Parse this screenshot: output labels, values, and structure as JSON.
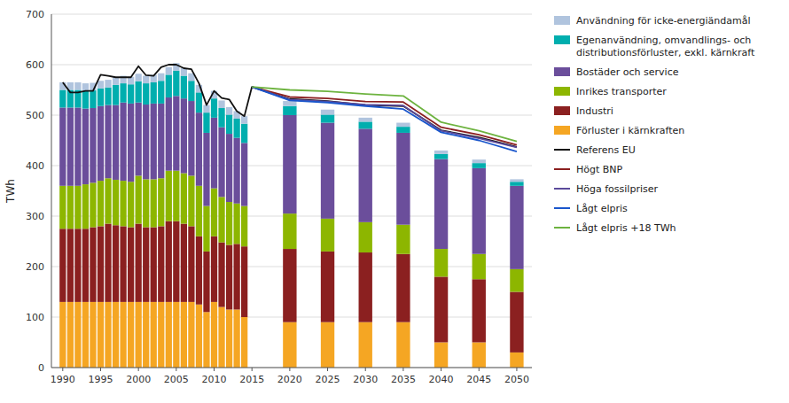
{
  "chart_data": {
    "type": "bar",
    "stacked": true,
    "grid": true,
    "legend": "right",
    "y_label": "TWh",
    "xlim": [
      1988.5,
      2052
    ],
    "xticks": [
      1990,
      1995,
      2000,
      2005,
      2010,
      2015,
      2020,
      2025,
      2030,
      2035,
      2040,
      2045,
      2050
    ],
    "ylim": [
      0,
      700
    ],
    "yticks": [
      0,
      100,
      200,
      300,
      400,
      500,
      600,
      700
    ],
    "series": [
      {
        "name": "Förluster i kärnkraften",
        "type": "bar",
        "color": "#F5A623",
        "x": [
          1990,
          1991,
          1992,
          1993,
          1994,
          1995,
          1996,
          1997,
          1998,
          1999,
          2000,
          2001,
          2002,
          2003,
          2004,
          2005,
          2006,
          2007,
          2008,
          2009,
          2010,
          2011,
          2012,
          2013,
          2014,
          2020,
          2025,
          2030,
          2035,
          2040,
          2045,
          2050
        ],
        "values": [
          130,
          130,
          130,
          130,
          130,
          130,
          130,
          130,
          130,
          130,
          130,
          130,
          130,
          130,
          130,
          130,
          130,
          130,
          125,
          110,
          130,
          120,
          115,
          115,
          100,
          90,
          90,
          90,
          90,
          50,
          50,
          30
        ]
      },
      {
        "name": "Industri",
        "type": "bar",
        "color": "#8B2020",
        "x": [
          1990,
          1991,
          1992,
          1993,
          1994,
          1995,
          1996,
          1997,
          1998,
          1999,
          2000,
          2001,
          2002,
          2003,
          2004,
          2005,
          2006,
          2007,
          2008,
          2009,
          2010,
          2011,
          2012,
          2013,
          2014,
          2020,
          2025,
          2030,
          2035,
          2040,
          2045,
          2050
        ],
        "values": [
          145,
          145,
          145,
          145,
          148,
          150,
          155,
          152,
          150,
          148,
          155,
          148,
          148,
          150,
          160,
          160,
          155,
          150,
          135,
          120,
          130,
          128,
          128,
          130,
          140,
          145,
          140,
          138,
          135,
          130,
          125,
          120
        ]
      },
      {
        "name": "Inrikes transporter",
        "type": "bar",
        "color": "#8DB600",
        "x": [
          1990,
          1991,
          1992,
          1993,
          1994,
          1995,
          1996,
          1997,
          1998,
          1999,
          2000,
          2001,
          2002,
          2003,
          2004,
          2005,
          2006,
          2007,
          2008,
          2009,
          2010,
          2011,
          2012,
          2013,
          2014,
          2020,
          2025,
          2030,
          2035,
          2040,
          2045,
          2050
        ],
        "values": [
          85,
          85,
          85,
          88,
          88,
          90,
          90,
          90,
          90,
          90,
          95,
          95,
          95,
          95,
          100,
          100,
          100,
          100,
          100,
          90,
          95,
          90,
          85,
          80,
          80,
          70,
          65,
          60,
          58,
          55,
          50,
          45
        ]
      },
      {
        "name": "Bostäder och service",
        "type": "bar",
        "color": "#6B4E9B",
        "x": [
          1990,
          1991,
          1992,
          1993,
          1994,
          1995,
          1996,
          1997,
          1998,
          1999,
          2000,
          2001,
          2002,
          2003,
          2004,
          2005,
          2006,
          2007,
          2008,
          2009,
          2010,
          2011,
          2012,
          2013,
          2014,
          2020,
          2025,
          2030,
          2035,
          2040,
          2045,
          2050
        ],
        "values": [
          155,
          155,
          155,
          150,
          148,
          148,
          145,
          148,
          155,
          155,
          145,
          148,
          150,
          148,
          145,
          148,
          148,
          148,
          145,
          145,
          140,
          138,
          135,
          130,
          125,
          195,
          190,
          185,
          182,
          178,
          170,
          165
        ]
      },
      {
        "name": "Egenanvändning, omvandlings- och\ndistributionsförluster, exkl. kärnkraft",
        "type": "bar",
        "color": "#00AEAE",
        "x": [
          1990,
          1991,
          1992,
          1993,
          1994,
          1995,
          1996,
          1997,
          1998,
          1999,
          2000,
          2001,
          2002,
          2003,
          2004,
          2005,
          2006,
          2007,
          2008,
          2009,
          2010,
          2011,
          2012,
          2013,
          2014,
          2020,
          2025,
          2030,
          2035,
          2040,
          2045,
          2050
        ],
        "values": [
          35,
          35,
          35,
          35,
          35,
          35,
          35,
          40,
          38,
          38,
          42,
          42,
          42,
          45,
          45,
          50,
          45,
          40,
          40,
          40,
          38,
          38,
          38,
          38,
          38,
          18,
          16,
          14,
          12,
          10,
          10,
          8
        ]
      },
      {
        "name": "Användning för icke-energiändamål",
        "type": "bar",
        "color": "#B0C4DE",
        "x": [
          1990,
          1991,
          1992,
          1993,
          1994,
          1995,
          1996,
          1997,
          1998,
          1999,
          2000,
          2001,
          2002,
          2003,
          2004,
          2005,
          2006,
          2007,
          2008,
          2009,
          2010,
          2011,
          2012,
          2013,
          2014,
          2020,
          2025,
          2030,
          2035,
          2040,
          2045,
          2050
        ],
        "values": [
          15,
          15,
          15,
          15,
          15,
          15,
          15,
          15,
          15,
          15,
          15,
          15,
          15,
          15,
          15,
          15,
          15,
          15,
          15,
          15,
          15,
          15,
          15,
          15,
          15,
          10,
          10,
          8,
          8,
          7,
          7,
          5
        ]
      },
      {
        "name": "Referens EU",
        "type": "line",
        "color": "#111111",
        "x": [
          1990,
          1991,
          1992,
          1993,
          1994,
          1995,
          1996,
          1997,
          1998,
          1999,
          2000,
          2001,
          2002,
          2003,
          2004,
          2005,
          2006,
          2007,
          2008,
          2009,
          2010,
          2011,
          2012,
          2013,
          2014,
          2015,
          2020,
          2025,
          2030,
          2035,
          2040,
          2045,
          2050
        ],
        "values": [
          565,
          545,
          545,
          548,
          548,
          580,
          578,
          575,
          575,
          575,
          597,
          579,
          578,
          595,
          600,
          600,
          593,
          591,
          563,
          520,
          548,
          534,
          531,
          508,
          498,
          556,
          532,
          528,
          520,
          518,
          470,
          456,
          437
        ]
      },
      {
        "name": "Högt BNP",
        "type": "line",
        "color": "#8B2020",
        "x": [
          2015,
          2020,
          2025,
          2030,
          2035,
          2040,
          2045,
          2050
        ],
        "values": [
          556,
          536,
          533,
          527,
          526,
          476,
          461,
          441
        ]
      },
      {
        "name": "Höga fossilpriser",
        "type": "line",
        "color": "#5B4A9B",
        "x": [
          2015,
          2020,
          2025,
          2030,
          2035,
          2040,
          2045,
          2050
        ],
        "values": [
          556,
          531,
          527,
          521,
          519,
          469,
          454,
          436
        ]
      },
      {
        "name": "Lågt elpris",
        "type": "line",
        "color": "#1A56CC",
        "x": [
          2015,
          2020,
          2025,
          2030,
          2035,
          2040,
          2045,
          2050
        ],
        "values": [
          556,
          529,
          525,
          518,
          512,
          466,
          450,
          428
        ]
      },
      {
        "name": "Lågt elpris +18 TWh",
        "type": "line",
        "color": "#6DB33F",
        "x": [
          2015,
          2020,
          2025,
          2030,
          2035,
          2040,
          2045,
          2050
        ],
        "values": [
          556,
          550,
          547,
          542,
          538,
          486,
          469,
          448
        ]
      }
    ]
  }
}
